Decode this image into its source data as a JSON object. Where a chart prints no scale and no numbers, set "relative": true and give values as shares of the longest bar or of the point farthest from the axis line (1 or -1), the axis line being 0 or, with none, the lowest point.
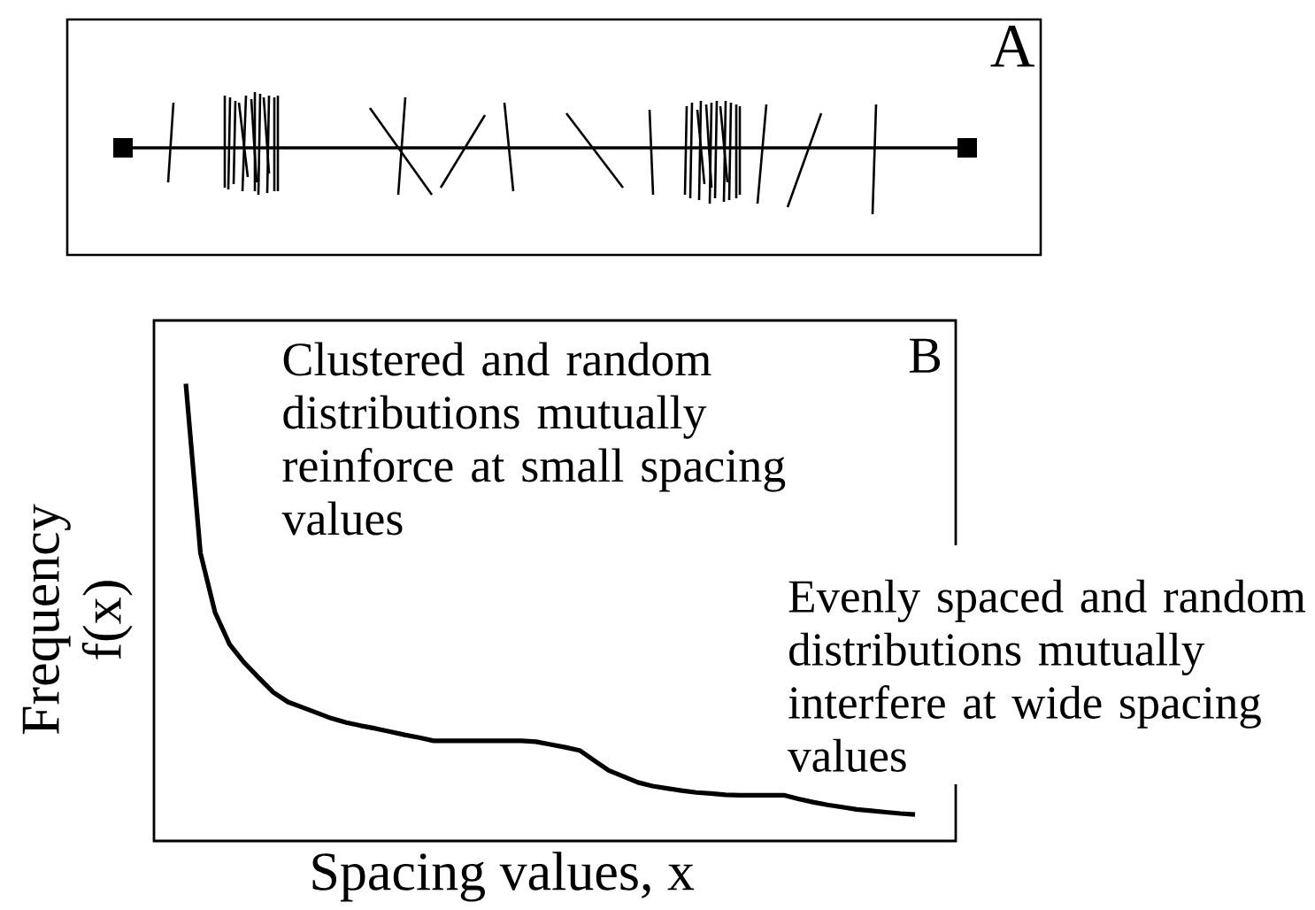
{
  "chart_data": [
    {
      "type": "other",
      "title": "A"
    },
    {
      "type": "line",
      "title": "B",
      "xlabel": "Spacing values, x",
      "ylabel": "Frequency f(x)",
      "annotations": [
        "Clustered and random distributions mutually reinforce at small spacing values",
        "Evenly spaced and random distributions mutually interfere at wide spacing values"
      ],
      "categories": [
        null,
        null,
        null,
        null,
        null,
        null,
        null,
        null,
        null,
        null,
        null,
        null,
        null,
        null,
        null,
        null,
        null,
        null,
        null,
        null,
        null,
        null,
        null,
        null,
        null,
        null,
        null,
        null,
        null,
        null,
        null,
        null,
        null,
        null,
        null,
        null,
        null,
        null,
        null,
        null,
        null,
        null,
        null,
        null,
        null,
        null,
        null,
        null,
        null,
        null,
        null
      ],
      "relative": true,
      "marker": "none",
      "series": [
        {
          "color": "#000000",
          "values": [
            1.0,
            0.63,
            0.5,
            0.43,
            0.39,
            0.357,
            0.325,
            0.304,
            0.292,
            0.28,
            0.268,
            0.259,
            0.252,
            0.246,
            0.239,
            0.232,
            0.226,
            0.219,
            0.219,
            0.219,
            0.219,
            0.219,
            0.219,
            0.219,
            0.217,
            0.211,
            0.205,
            0.198,
            0.176,
            0.154,
            0.141,
            0.128,
            0.12,
            0.115,
            0.11,
            0.106,
            0.104,
            0.101,
            0.1,
            0.1,
            0.1,
            0.1,
            0.092,
            0.085,
            0.079,
            0.074,
            0.069,
            0.066,
            0.063,
            0.06,
            0.058
          ]
        }
      ]
    }
  ]
}
